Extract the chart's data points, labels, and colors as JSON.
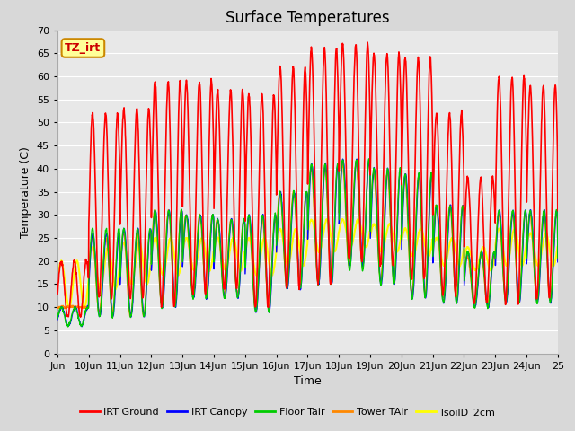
{
  "title": "Surface Temperatures",
  "xlabel": "Time",
  "ylabel": "Temperature (C)",
  "ylim": [
    0,
    70
  ],
  "yticks": [
    0,
    5,
    10,
    15,
    20,
    25,
    30,
    35,
    40,
    45,
    50,
    55,
    60,
    65,
    70
  ],
  "xlim_start": 9,
  "xlim_end": 25,
  "xtick_labels": [
    "Jun",
    "10Jun",
    "11Jun",
    "12Jun",
    "13Jun",
    "14Jun",
    "15Jun",
    "16Jun",
    "17Jun",
    "18Jun",
    "19Jun",
    "20Jun",
    "21Jun",
    "22Jun",
    "23Jun",
    "24Jun",
    "25"
  ],
  "xtick_positions": [
    9,
    10,
    11,
    12,
    13,
    14,
    15,
    16,
    17,
    18,
    19,
    20,
    21,
    22,
    23,
    24,
    25
  ],
  "fig_bg_color": "#d8d8d8",
  "plot_bg_color": "#e8e8e8",
  "grid_color": "#ffffff",
  "series": [
    {
      "name": "IRT Ground",
      "color": "#ff0000",
      "linewidth": 1.2,
      "zorder": 5
    },
    {
      "name": "IRT Canopy",
      "color": "#0000ff",
      "linewidth": 1.0,
      "zorder": 4
    },
    {
      "name": "Floor Tair",
      "color": "#00cc00",
      "linewidth": 1.0,
      "zorder": 4
    },
    {
      "name": "Tower TAir",
      "color": "#ff8800",
      "linewidth": 1.0,
      "zorder": 3
    },
    {
      "name": "TsoilD_2cm",
      "color": "#ffff00",
      "linewidth": 1.5,
      "zorder": 2
    }
  ],
  "annotation_text": "TZ_irt",
  "annotation_bg": "#ffff99",
  "annotation_border": "#cc8800",
  "title_fontsize": 12,
  "label_fontsize": 9,
  "tick_fontsize": 8,
  "irt_ground_peaks": [
    20,
    52,
    53,
    59,
    59,
    57,
    56,
    62,
    66,
    67,
    65,
    64,
    52,
    38,
    60,
    58,
    58
  ],
  "irt_ground_lows": [
    8,
    12,
    12,
    10,
    13,
    14,
    10,
    14,
    15,
    20,
    19,
    16,
    13,
    11,
    11,
    12,
    14
  ],
  "canopy_peaks": [
    10,
    26,
    27,
    31,
    30,
    29,
    30,
    35,
    41,
    42,
    40,
    39,
    32,
    22,
    31,
    31,
    30
  ],
  "canopy_lows": [
    6,
    8,
    8,
    10,
    12,
    12,
    9,
    14,
    15,
    19,
    15,
    12,
    11,
    10,
    11,
    11,
    14
  ],
  "floor_peaks": [
    10,
    27,
    27,
    31,
    30,
    29,
    30,
    35,
    41,
    42,
    40,
    39,
    32,
    22,
    31,
    31,
    30
  ],
  "floor_lows": [
    6,
    8,
    8,
    10,
    12,
    12,
    9,
    14,
    15,
    18,
    15,
    12,
    11,
    10,
    11,
    11,
    14
  ],
  "tower_peaks": [
    10,
    25,
    26,
    31,
    30,
    29,
    29,
    35,
    40,
    41,
    39,
    38,
    32,
    21,
    30,
    30,
    30
  ],
  "tower_lows": [
    10,
    9,
    8,
    11,
    13,
    13,
    10,
    15,
    16,
    19,
    16,
    13,
    12,
    11,
    12,
    12,
    15
  ],
  "soil_peaks": [
    20,
    23,
    24,
    25,
    25,
    25,
    25,
    27,
    29,
    29,
    28,
    27,
    25,
    23,
    27,
    26,
    26
  ],
  "soil_lows": [
    10,
    14,
    15,
    17,
    18,
    18,
    17,
    19,
    22,
    23,
    22,
    21,
    19,
    18,
    19,
    19,
    20
  ]
}
